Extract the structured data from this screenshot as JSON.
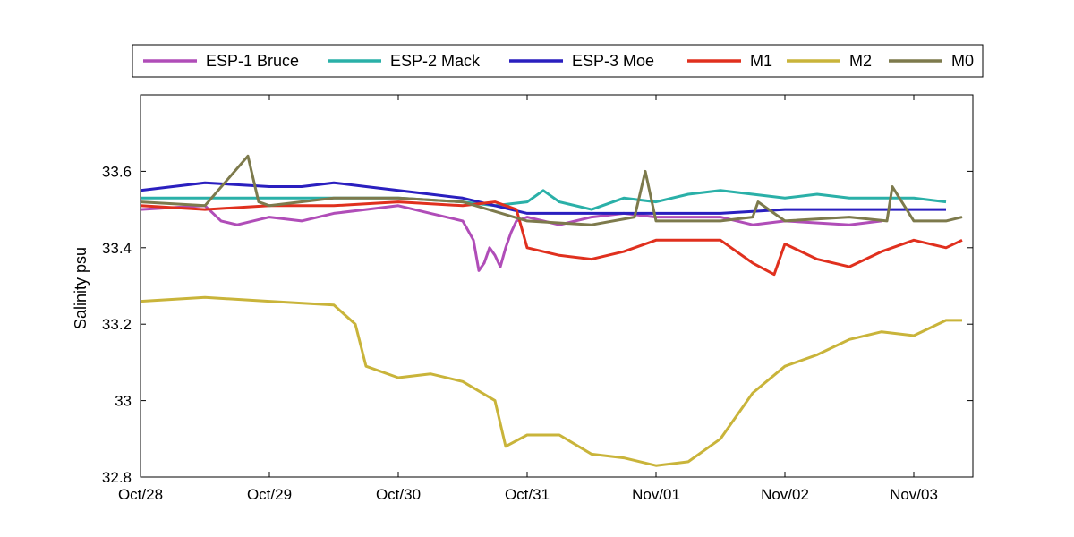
{
  "chart_data": {
    "type": "line",
    "title": "",
    "xlabel": "",
    "ylabel": "Salinity psu",
    "x_ticks": [
      "Oct/28",
      "Oct/29",
      "Oct/30",
      "Oct/31",
      "Nov/01",
      "Nov/02",
      "Nov/03"
    ],
    "xlim": [
      "Oct/28",
      "Nov/03 09:00"
    ],
    "ylim": [
      32.8,
      33.8
    ],
    "y_ticks": [
      "32.8",
      "33",
      "33.2",
      "33.4",
      "33.6"
    ],
    "grid": false,
    "legend_position": "top",
    "series": [
      {
        "name": "ESP-1 Bruce",
        "color": "#b04db8",
        "points": [
          [
            "Oct/28 00:00",
            33.5
          ],
          [
            "Oct/28 12:00",
            33.51
          ],
          [
            "Oct/28 15:00",
            33.47
          ],
          [
            "Oct/28 18:00",
            33.46
          ],
          [
            "Oct/29 00:00",
            33.48
          ],
          [
            "Oct/29 06:00",
            33.47
          ],
          [
            "Oct/29 12:00",
            33.49
          ],
          [
            "Oct/29 18:00",
            33.5
          ],
          [
            "Oct/30 00:00",
            33.51
          ],
          [
            "Oct/30 06:00",
            33.49
          ],
          [
            "Oct/30 12:00",
            33.47
          ],
          [
            "Oct/30 14:00",
            33.42
          ],
          [
            "Oct/30 15:00",
            33.34
          ],
          [
            "Oct/30 16:00",
            33.36
          ],
          [
            "Oct/30 17:00",
            33.4
          ],
          [
            "Oct/30 18:00",
            33.38
          ],
          [
            "Oct/30 19:00",
            33.35
          ],
          [
            "Oct/30 20:00",
            33.4
          ],
          [
            "Oct/30 21:00",
            33.44
          ],
          [
            "Oct/30 22:00",
            33.47
          ],
          [
            "Oct/31 00:00",
            33.48
          ],
          [
            "Oct/31 06:00",
            33.46
          ],
          [
            "Oct/31 12:00",
            33.48
          ],
          [
            "Oct/31 18:00",
            33.49
          ],
          [
            "Nov/01 00:00",
            33.48
          ],
          [
            "Nov/01 12:00",
            33.48
          ],
          [
            "Nov/01 18:00",
            33.46
          ],
          [
            "Nov/02 00:00",
            33.47
          ],
          [
            "Nov/02 12:00",
            33.46
          ],
          [
            "Nov/02 18:00",
            33.47
          ]
        ]
      },
      {
        "name": "ESP-2 Mack",
        "color": "#2ab0a8",
        "points": [
          [
            "Oct/28 00:00",
            33.53
          ],
          [
            "Oct/28 12:00",
            33.53
          ],
          [
            "Oct/29 00:00",
            33.53
          ],
          [
            "Oct/29 12:00",
            33.53
          ],
          [
            "Oct/30 00:00",
            33.53
          ],
          [
            "Oct/30 12:00",
            33.52
          ],
          [
            "Oct/30 18:00",
            33.51
          ],
          [
            "Oct/31 00:00",
            33.52
          ],
          [
            "Oct/31 03:00",
            33.55
          ],
          [
            "Oct/31 06:00",
            33.52
          ],
          [
            "Oct/31 12:00",
            33.5
          ],
          [
            "Oct/31 18:00",
            33.53
          ],
          [
            "Nov/01 00:00",
            33.52
          ],
          [
            "Nov/01 06:00",
            33.54
          ],
          [
            "Nov/01 12:00",
            33.55
          ],
          [
            "Nov/01 18:00",
            33.54
          ],
          [
            "Nov/02 00:00",
            33.53
          ],
          [
            "Nov/02 06:00",
            33.54
          ],
          [
            "Nov/02 12:00",
            33.53
          ],
          [
            "Nov/02 18:00",
            33.53
          ],
          [
            "Nov/03 00:00",
            33.53
          ],
          [
            "Nov/03 06:00",
            33.52
          ]
        ]
      },
      {
        "name": "ESP-3 Moe",
        "color": "#2a1fbf",
        "points": [
          [
            "Oct/28 00:00",
            33.55
          ],
          [
            "Oct/28 06:00",
            33.56
          ],
          [
            "Oct/28 12:00",
            33.57
          ],
          [
            "Oct/29 00:00",
            33.56
          ],
          [
            "Oct/29 06:00",
            33.56
          ],
          [
            "Oct/29 12:00",
            33.57
          ],
          [
            "Oct/29 18:00",
            33.56
          ],
          [
            "Oct/30 00:00",
            33.55
          ],
          [
            "Oct/30 06:00",
            33.54
          ],
          [
            "Oct/30 12:00",
            33.53
          ],
          [
            "Oct/30 18:00",
            33.51
          ],
          [
            "Oct/31 00:00",
            33.49
          ],
          [
            "Oct/31 12:00",
            33.49
          ],
          [
            "Nov/01 00:00",
            33.49
          ],
          [
            "Nov/01 12:00",
            33.49
          ],
          [
            "Nov/02 00:00",
            33.5
          ],
          [
            "Nov/02 12:00",
            33.5
          ],
          [
            "Nov/03 00:00",
            33.5
          ],
          [
            "Nov/03 06:00",
            33.5
          ]
        ]
      },
      {
        "name": "M1",
        "color": "#e0301e",
        "points": [
          [
            "Oct/28 00:00",
            33.51
          ],
          [
            "Oct/28 12:00",
            33.5
          ],
          [
            "Oct/29 00:00",
            33.51
          ],
          [
            "Oct/29 12:00",
            33.51
          ],
          [
            "Oct/30 00:00",
            33.52
          ],
          [
            "Oct/30 12:00",
            33.51
          ],
          [
            "Oct/30 18:00",
            33.52
          ],
          [
            "Oct/30 22:00",
            33.5
          ],
          [
            "Oct/31 00:00",
            33.4
          ],
          [
            "Oct/31 06:00",
            33.38
          ],
          [
            "Oct/31 12:00",
            33.37
          ],
          [
            "Oct/31 18:00",
            33.39
          ],
          [
            "Nov/01 00:00",
            33.42
          ],
          [
            "Nov/01 06:00",
            33.42
          ],
          [
            "Nov/01 12:00",
            33.42
          ],
          [
            "Nov/01 18:00",
            33.36
          ],
          [
            "Nov/01 22:00",
            33.33
          ],
          [
            "Nov/02 00:00",
            33.41
          ],
          [
            "Nov/02 06:00",
            33.37
          ],
          [
            "Nov/02 12:00",
            33.35
          ],
          [
            "Nov/02 18:00",
            33.39
          ],
          [
            "Nov/03 00:00",
            33.42
          ],
          [
            "Nov/03 06:00",
            33.4
          ],
          [
            "Nov/03 09:00",
            33.42
          ]
        ]
      },
      {
        "name": "M2",
        "color": "#c9b43a",
        "points": [
          [
            "Oct/28 00:00",
            33.26
          ],
          [
            "Oct/28 12:00",
            33.27
          ],
          [
            "Oct/29 00:00",
            33.26
          ],
          [
            "Oct/29 12:00",
            33.25
          ],
          [
            "Oct/29 16:00",
            33.2
          ],
          [
            "Oct/29 18:00",
            33.09
          ],
          [
            "Oct/30 00:00",
            33.06
          ],
          [
            "Oct/30 06:00",
            33.07
          ],
          [
            "Oct/30 12:00",
            33.05
          ],
          [
            "Oct/30 18:00",
            33.0
          ],
          [
            "Oct/30 20:00",
            32.88
          ],
          [
            "Oct/31 00:00",
            32.91
          ],
          [
            "Oct/31 06:00",
            32.91
          ],
          [
            "Oct/31 12:00",
            32.86
          ],
          [
            "Oct/31 18:00",
            32.85
          ],
          [
            "Nov/01 00:00",
            32.83
          ],
          [
            "Nov/01 06:00",
            32.84
          ],
          [
            "Nov/01 12:00",
            32.9
          ],
          [
            "Nov/01 18:00",
            33.02
          ],
          [
            "Nov/02 00:00",
            33.09
          ],
          [
            "Nov/02 06:00",
            33.12
          ],
          [
            "Nov/02 12:00",
            33.16
          ],
          [
            "Nov/02 18:00",
            33.18
          ],
          [
            "Nov/03 00:00",
            33.17
          ],
          [
            "Nov/03 06:00",
            33.21
          ],
          [
            "Nov/03 09:00",
            33.21
          ]
        ]
      },
      {
        "name": "M0",
        "color": "#7d7a4c",
        "points": [
          [
            "Oct/28 00:00",
            33.52
          ],
          [
            "Oct/28 12:00",
            33.51
          ],
          [
            "Oct/28 20:00",
            33.64
          ],
          [
            "Oct/28 22:00",
            33.52
          ],
          [
            "Oct/29 00:00",
            33.51
          ],
          [
            "Oct/29 12:00",
            33.53
          ],
          [
            "Oct/30 00:00",
            33.53
          ],
          [
            "Oct/30 12:00",
            33.52
          ],
          [
            "Oct/31 00:00",
            33.47
          ],
          [
            "Oct/31 12:00",
            33.46
          ],
          [
            "Oct/31 20:00",
            33.48
          ],
          [
            "Oct/31 22:00",
            33.6
          ],
          [
            "Nov/01 00:00",
            33.47
          ],
          [
            "Nov/01 12:00",
            33.47
          ],
          [
            "Nov/01 18:00",
            33.48
          ],
          [
            "Nov/01 19:00",
            33.52
          ],
          [
            "Nov/02 00:00",
            33.47
          ],
          [
            "Nov/02 12:00",
            33.48
          ],
          [
            "Nov/02 19:00",
            33.47
          ],
          [
            "Nov/02 20:00",
            33.56
          ],
          [
            "Nov/03 00:00",
            33.47
          ],
          [
            "Nov/03 06:00",
            33.47
          ],
          [
            "Nov/03 09:00",
            33.48
          ]
        ]
      }
    ]
  }
}
